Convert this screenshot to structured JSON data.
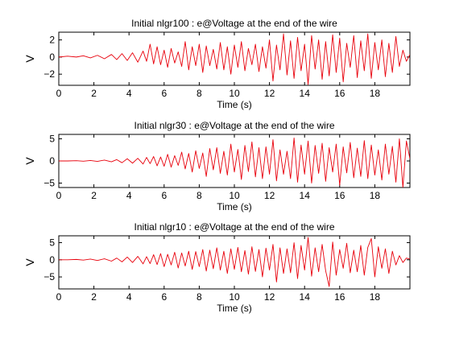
{
  "figure": {
    "background": "#ffffff",
    "line_color": "#e8000b"
  },
  "chart_data": [
    {
      "type": "line",
      "title": "Initial nlgr100 : e@Voltage at the end of the wire",
      "xlabel": "Time (s)",
      "ylabel": "V",
      "xlim": [
        0,
        20
      ],
      "ylim": [
        -3.3,
        2.9
      ],
      "xticks": [
        0,
        2,
        4,
        6,
        8,
        10,
        12,
        14,
        16,
        18
      ],
      "yticks": [
        -2,
        0,
        2
      ],
      "grid": false,
      "series": [
        {
          "color": "#e8000b",
          "x": [
            0,
            0.5,
            1,
            1.4,
            1.8,
            2.2,
            2.6,
            3,
            3.3,
            3.6,
            3.9,
            4.2,
            4.5,
            4.8,
            5,
            5.2,
            5.4,
            5.6,
            5.8,
            6,
            6.2,
            6.4,
            6.6,
            6.8,
            7,
            7.2,
            7.4,
            7.6,
            7.8,
            8,
            8.2,
            8.4,
            8.6,
            8.8,
            9,
            9.2,
            9.4,
            9.6,
            9.8,
            10,
            10.2,
            10.4,
            10.6,
            10.8,
            11,
            11.2,
            11.4,
            11.6,
            11.8,
            12,
            12.2,
            12.4,
            12.6,
            12.8,
            13,
            13.2,
            13.4,
            13.6,
            13.8,
            14,
            14.2,
            14.4,
            14.6,
            14.8,
            15,
            15.2,
            15.4,
            15.6,
            15.8,
            16,
            16.2,
            16.4,
            16.6,
            16.8,
            17,
            17.2,
            17.4,
            17.6,
            17.8,
            18,
            18.2,
            18.4,
            18.6,
            18.8,
            19,
            19.2,
            19.4,
            19.6,
            19.8,
            20
          ],
          "y": [
            0,
            0.1,
            0,
            0.15,
            -0.1,
            0.2,
            -0.2,
            0.3,
            -0.3,
            0.4,
            -0.4,
            0.5,
            -0.6,
            0.7,
            -0.5,
            1.5,
            -0.8,
            1.2,
            -0.9,
            0.8,
            -1.2,
            1,
            -0.7,
            0.6,
            -1.1,
            1.8,
            -1.5,
            1.2,
            -1,
            1.5,
            -1.8,
            1.3,
            -1,
            0.9,
            -1.4,
            1.7,
            -1.5,
            1.2,
            -2,
            1.4,
            -1.2,
            1.8,
            -1.6,
            1,
            -0.9,
            1.5,
            -1.7,
            1.2,
            -1.3,
            2,
            -2.8,
            1.4,
            -1.5,
            2.7,
            -2.1,
            1.9,
            -2.5,
            2.3,
            -1.6,
            1.5,
            -3.2,
            2.5,
            -1.4,
            2,
            -2.6,
            1.8,
            -2.2,
            2.6,
            -1.8,
            2.2,
            -2.9,
            1.6,
            -1.2,
            2.5,
            -2.4,
            1.9,
            -1.6,
            2.7,
            -2.5,
            1.7,
            -1.5,
            2,
            -2.3,
            1.6,
            -1.8,
            2.4,
            -1.1,
            0.8,
            -0.5,
            0.3
          ]
        }
      ]
    },
    {
      "type": "line",
      "title": "Initial nlgr30 : e@Voltage at the end of the wire",
      "xlabel": "Time (s)",
      "ylabel": "V",
      "xlim": [
        0,
        20
      ],
      "ylim": [
        -6,
        6
      ],
      "xticks": [
        0,
        2,
        4,
        6,
        8,
        10,
        12,
        14,
        16,
        18
      ],
      "yticks": [
        -5,
        0,
        5
      ],
      "grid": false,
      "series": [
        {
          "color": "#e8000b",
          "x": [
            0,
            0.5,
            1,
            1.4,
            1.8,
            2.2,
            2.6,
            3,
            3.3,
            3.6,
            3.9,
            4.2,
            4.5,
            4.8,
            5,
            5.2,
            5.4,
            5.6,
            5.8,
            6,
            6.2,
            6.4,
            6.6,
            6.8,
            7,
            7.2,
            7.4,
            7.6,
            7.8,
            8,
            8.2,
            8.4,
            8.6,
            8.8,
            9,
            9.2,
            9.4,
            9.6,
            9.8,
            10,
            10.2,
            10.4,
            10.6,
            10.8,
            11,
            11.2,
            11.4,
            11.6,
            11.8,
            12,
            12.2,
            12.4,
            12.6,
            12.8,
            13,
            13.2,
            13.4,
            13.6,
            13.8,
            14,
            14.2,
            14.4,
            14.6,
            14.8,
            15,
            15.2,
            15.4,
            15.6,
            15.8,
            16,
            16.2,
            16.4,
            16.6,
            16.8,
            17,
            17.2,
            17.4,
            17.6,
            17.8,
            18,
            18.2,
            18.4,
            18.6,
            18.8,
            19,
            19.2,
            19.4,
            19.6,
            19.8,
            20
          ],
          "y": [
            0,
            0,
            0.05,
            -0.05,
            0.1,
            -0.1,
            0.2,
            -0.2,
            0.3,
            -0.4,
            0.5,
            -0.5,
            0.6,
            -0.7,
            0.8,
            -0.6,
            1,
            -1.1,
            0.9,
            -1.2,
            1.5,
            -1.4,
            1.2,
            -1,
            2,
            -1.8,
            1.7,
            -2.5,
            2.3,
            -1.7,
            1.8,
            -3.5,
            2.8,
            -2,
            3,
            -2.8,
            2.2,
            -3.2,
            3.8,
            -2.5,
            2.6,
            -4.2,
            3.5,
            -2.4,
            4.3,
            -3.6,
            3,
            -4,
            3.2,
            -3,
            4.8,
            -4.5,
            2.5,
            -3,
            2.2,
            -4,
            5.2,
            -4.8,
            3.6,
            -3,
            4.5,
            -5,
            3.5,
            -2.8,
            4,
            -4.6,
            3,
            -2.5,
            3.8,
            -5.5,
            3.2,
            -2.7,
            4.2,
            -3.8,
            2.9,
            -3.5,
            4.6,
            -4,
            3.6,
            -3.2,
            2.5,
            -4.3,
            3.8,
            -3,
            3.3,
            -4.8,
            5,
            -6,
            4.5,
            0.5
          ]
        }
      ]
    },
    {
      "type": "line",
      "title": "Initial nlgr10 : e@Voltage at the end of the wire",
      "xlabel": "Time (s)",
      "ylabel": "V",
      "xlim": [
        0,
        20
      ],
      "ylim": [
        -8.5,
        7
      ],
      "xticks": [
        0,
        2,
        4,
        6,
        8,
        10,
        12,
        14,
        16,
        18
      ],
      "yticks": [
        -5,
        0,
        5
      ],
      "grid": false,
      "series": [
        {
          "color": "#e8000b",
          "x": [
            0,
            0.5,
            1,
            1.4,
            1.8,
            2.2,
            2.6,
            3,
            3.3,
            3.6,
            3.9,
            4.2,
            4.5,
            4.8,
            5,
            5.2,
            5.4,
            5.6,
            5.8,
            6,
            6.2,
            6.4,
            6.6,
            6.8,
            7,
            7.2,
            7.4,
            7.6,
            7.8,
            8,
            8.2,
            8.4,
            8.6,
            8.8,
            9,
            9.2,
            9.4,
            9.6,
            9.8,
            10,
            10.2,
            10.4,
            10.6,
            10.8,
            11,
            11.2,
            11.4,
            11.6,
            11.8,
            12,
            12.2,
            12.4,
            12.6,
            12.8,
            13,
            13.2,
            13.4,
            13.6,
            13.8,
            14,
            14.2,
            14.4,
            14.6,
            14.8,
            15,
            15.2,
            15.4,
            15.6,
            15.8,
            16,
            16.2,
            16.4,
            16.6,
            16.8,
            17,
            17.2,
            17.4,
            17.6,
            17.8,
            18,
            18.2,
            18.4,
            18.6,
            18.8,
            19,
            19.2,
            19.4,
            19.6,
            19.8,
            20
          ],
          "y": [
            0,
            0,
            0.1,
            -0.1,
            0.2,
            -0.2,
            0.3,
            -0.4,
            0.5,
            -0.6,
            0.8,
            -0.8,
            1,
            -1.2,
            0.9,
            -1.1,
            1.5,
            -1.4,
            1.8,
            -2,
            1.6,
            -1.5,
            2.2,
            -2.4,
            2,
            -1.8,
            2.5,
            -2.8,
            2.4,
            -2,
            3,
            -3.3,
            2.8,
            -2.6,
            3.5,
            -3,
            2.5,
            -4,
            3.2,
            -2.8,
            3.6,
            -3.5,
            2.7,
            -4.2,
            3.8,
            -3.4,
            3,
            -5,
            3.4,
            -3,
            4.5,
            -6.5,
            3.5,
            -4,
            3.2,
            -3.8,
            5,
            -5.5,
            4.2,
            -3,
            6.5,
            -4.8,
            3.5,
            -3.5,
            4.5,
            -3.2,
            -7.8,
            5.2,
            -4.5,
            3,
            -2.5,
            4.8,
            -3.8,
            2.8,
            -3.5,
            4.2,
            -4.5,
            3.6,
            6.2,
            -5,
            3.8,
            -2.5,
            3.2,
            -4,
            2.5,
            -1.5,
            1.2,
            -0.8,
            0.5,
            0.2
          ]
        }
      ]
    }
  ]
}
